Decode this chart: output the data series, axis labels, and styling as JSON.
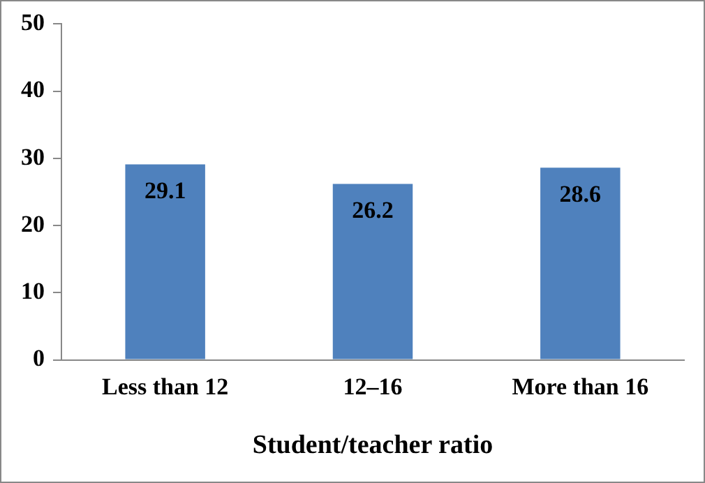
{
  "chart_data": {
    "type": "bar",
    "xlabel": "Student/teacher ratio",
    "categories": [
      "Less than 12",
      "12–16",
      "More than 16"
    ],
    "values": [
      29.1,
      26.2,
      28.6
    ],
    "color": "#4f81bd",
    "ylim": [
      0,
      50
    ],
    "yticks": [
      0,
      10,
      20,
      30,
      40,
      50
    ],
    "grid": false,
    "legend": false,
    "data_labels": true
  }
}
